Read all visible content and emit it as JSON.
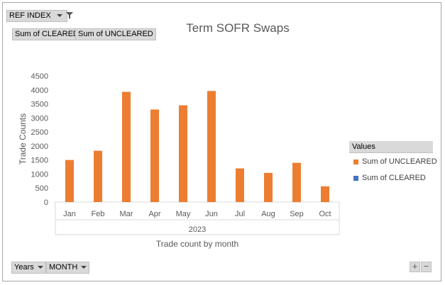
{
  "filter_buttons": {
    "ref_index": "REF INDEX",
    "values_fields": [
      "Sum of CLEARED",
      "Sum of UNCLEARED"
    ],
    "axis_fields": [
      "Years",
      "MONTH"
    ]
  },
  "legend": {
    "header": "Values",
    "items": [
      {
        "label": "Sum of UNCLEARED",
        "color": "#ed7d31"
      },
      {
        "label": "Sum of CLEARED",
        "color": "#4472c4"
      }
    ]
  },
  "zoom": {
    "plus": "+",
    "minus": "−"
  },
  "chart_data": {
    "type": "bar",
    "title": "Term SOFR Swaps",
    "xlabel": "Trade count by month",
    "ylabel": "Trade Counts",
    "year_label": "2023",
    "categories": [
      "Jan",
      "Feb",
      "Mar",
      "Apr",
      "May",
      "Jun",
      "Jul",
      "Aug",
      "Sep",
      "Oct"
    ],
    "series": [
      {
        "name": "Sum of UNCLEARED",
        "color": "#ed7d31",
        "values": [
          1500,
          1830,
          3930,
          3300,
          3450,
          3960,
          1200,
          1040,
          1400,
          560
        ]
      },
      {
        "name": "Sum of CLEARED",
        "color": "#4472c4",
        "values": [
          0,
          0,
          0,
          0,
          0,
          0,
          0,
          0,
          0,
          0
        ]
      }
    ],
    "ylim": [
      0,
      4500
    ],
    "yticks": [
      0,
      500,
      1000,
      1500,
      2000,
      2500,
      3000,
      3500,
      4000,
      4500
    ],
    "grid": false,
    "legend_position": "right"
  }
}
